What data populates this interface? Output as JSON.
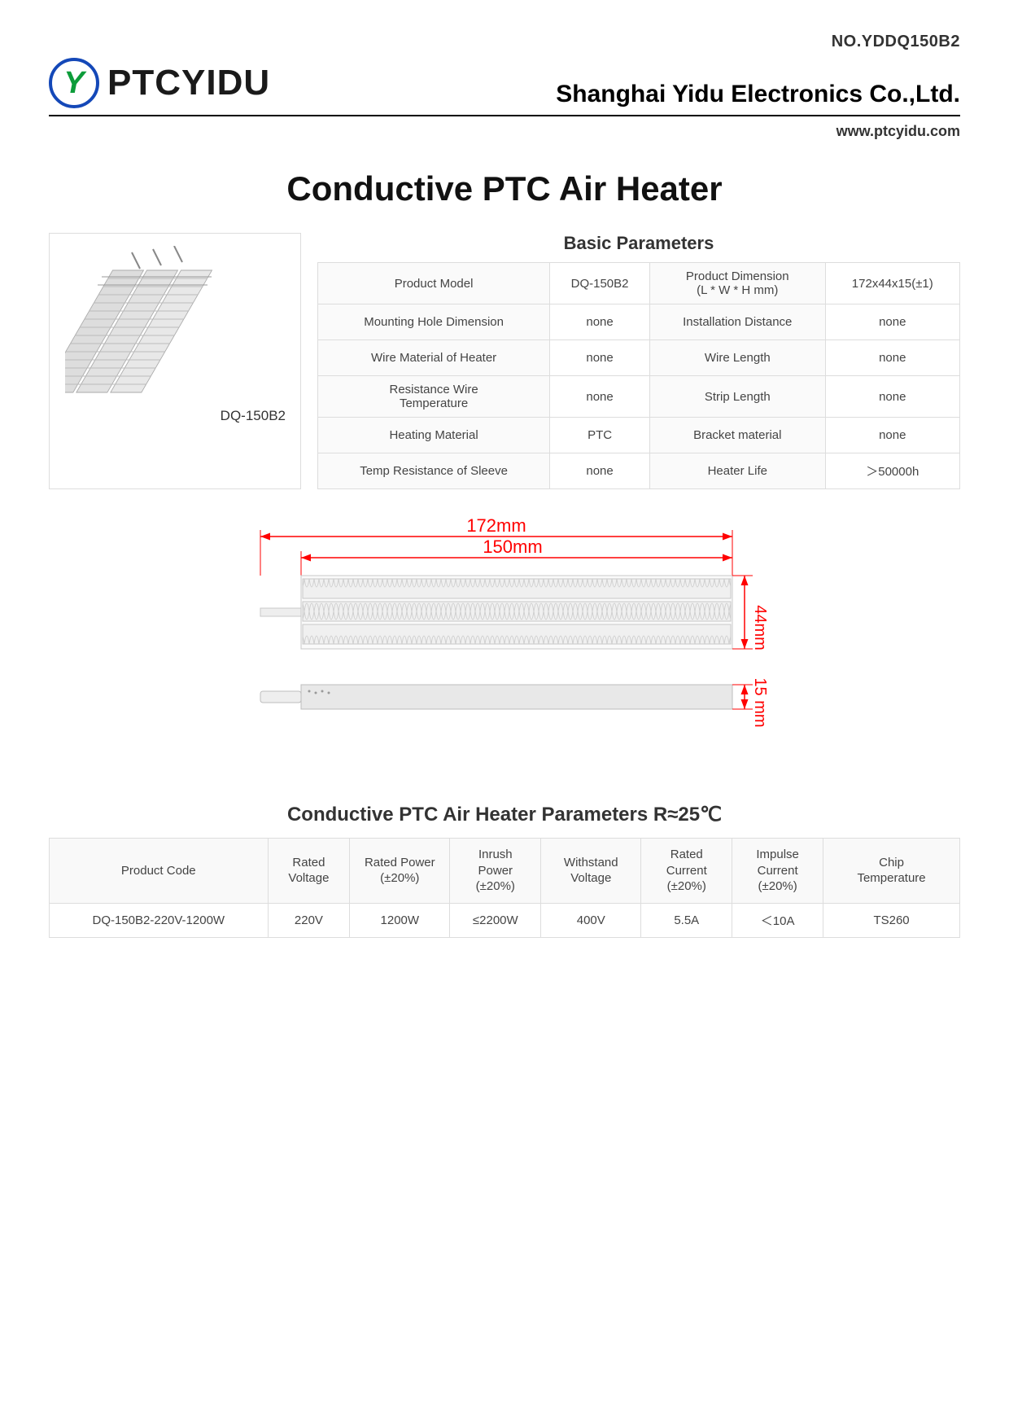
{
  "doc_no": "NO.YDDQ150B2",
  "logo": {
    "mark": "Y",
    "text": "PTCYIDU",
    "mark_color": "#0d9c3a",
    "ring_color": "#1448b8"
  },
  "company": "Shanghai Yidu Electronics Co.,Ltd.",
  "website": "www.ptcyidu.com",
  "main_title": "Conductive PTC Air Heater",
  "product_label": "DQ-150B2",
  "basic_params": {
    "title": "Basic Parameters",
    "rows": [
      {
        "l1": "Product Model",
        "v1": "DQ-150B2",
        "l2": "Product Dimension\n(L * W * H mm)",
        "v2": "172x44x15(±1)"
      },
      {
        "l1": "Mounting Hole Dimension",
        "v1": "none",
        "l2": "Installation Distance",
        "v2": "none"
      },
      {
        "l1": "Wire Material of Heater",
        "v1": "none",
        "l2": "Wire Length",
        "v2": "none"
      },
      {
        "l1": "Resistance Wire\nTemperature",
        "v1": "none",
        "l2": "Strip Length",
        "v2": "none"
      },
      {
        "l1": "Heating Material",
        "v1": "PTC",
        "l2": "Bracket material",
        "v2": "none"
      },
      {
        "l1": "Temp Resistance of Sleeve",
        "v1": "none",
        "l2": "Heater Life",
        "v2": "＞50000h"
      }
    ]
  },
  "dimensions": {
    "length_outer": "172mm",
    "length_inner": "150mm",
    "width": "44mm",
    "height": "15\nmm",
    "colors": {
      "dim_line": "#ff0000",
      "body_fill": "#e8e8e8",
      "body_stroke": "#bdbdbd",
      "hatch": "#cfcfcf"
    }
  },
  "params2": {
    "title": "Conductive PTC Air Heater Parameters R≈25℃",
    "headers": [
      "Product Code",
      "Rated\nVoltage",
      "Rated Power\n(±20%)",
      "Inrush\nPower\n(±20%)",
      "Withstand\nVoltage",
      "Rated\nCurrent\n(±20%)",
      "Impulse\nCurrent\n(±20%)",
      "Chip\nTemperature"
    ],
    "row": [
      "DQ-150B2-220V-1200W",
      "220V",
      "1200W",
      "≤2200W",
      "400V",
      "5.5A",
      "＜10A",
      "TS260"
    ]
  }
}
